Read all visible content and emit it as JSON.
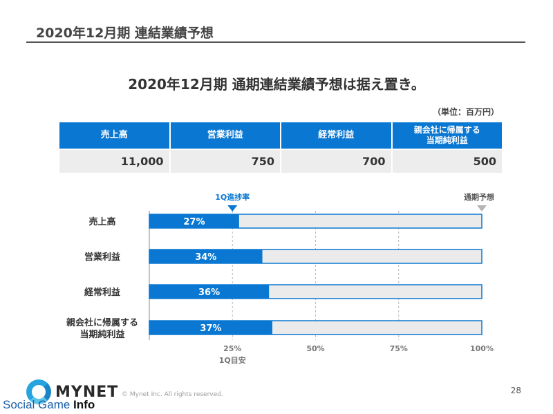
{
  "header": {
    "title": "2020年12月期 連結業績予想"
  },
  "main_title": "2020年12月期 通期連結業績予想は据え置き。",
  "unit_label": "（単位：百万円）",
  "table": {
    "headers": [
      "売上高",
      "営業利益",
      "経常利益",
      "親会社に帰属する当期純利益"
    ],
    "header_lines": [
      [
        "売上高"
      ],
      [
        "営業利益"
      ],
      [
        "経常利益"
      ],
      [
        "親会社に帰属する",
        "当期純利益"
      ]
    ],
    "values": [
      "11,000",
      "750",
      "700",
      "500"
    ]
  },
  "chart_data": {
    "type": "bar",
    "orientation": "horizontal",
    "categories": [
      "売上高",
      "営業利益",
      "経常利益",
      "親会社に帰属する当期純利益"
    ],
    "category_lines": [
      [
        "売上高"
      ],
      [
        "営業利益"
      ],
      [
        "経常利益"
      ],
      [
        "親会社に帰属する",
        "当期純利益"
      ]
    ],
    "values": [
      27,
      34,
      36,
      37
    ],
    "value_labels": [
      "27%",
      "34%",
      "36%",
      "37%"
    ],
    "xlim": [
      0,
      100
    ],
    "x_ticks": [
      25,
      50,
      75,
      100
    ],
    "x_tick_labels": [
      "25%",
      "50%",
      "75%",
      "100%"
    ],
    "markers": [
      {
        "label": "1Q進捗率",
        "value": 25
      },
      {
        "label": "通期予想",
        "value": 100
      }
    ],
    "below_axis_label": {
      "label": "1Q目安",
      "value": 25
    },
    "colors": {
      "fill": "#0a78d2",
      "track": "#ebebeb",
      "marker_blue": "#0a78d2",
      "marker_gray": "#b5b5b5"
    }
  },
  "footer": {
    "logo_text": "MYNET",
    "copyright": "© Mynet Inc. All rights reserved.",
    "page_number": "28",
    "watermark_a": "Social Game ",
    "watermark_b": "Info"
  }
}
